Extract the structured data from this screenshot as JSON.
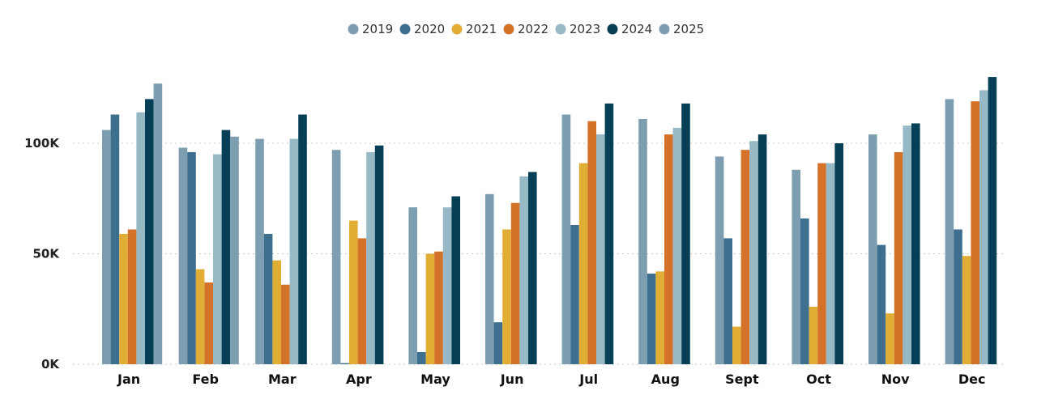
{
  "chart_data": {
    "type": "bar",
    "categories": [
      "Jan",
      "Feb",
      "Mar",
      "Apr",
      "May",
      "Jun",
      "Jul",
      "Aug",
      "Sept",
      "Oct",
      "Nov",
      "Dec"
    ],
    "series": [
      {
        "name": "2019",
        "color": "#7c9eb0",
        "values": [
          106000,
          98000,
          102000,
          97000,
          71000,
          77000,
          113000,
          111000,
          94000,
          88000,
          104000,
          120000
        ]
      },
      {
        "name": "2020",
        "color": "#3e6f8f",
        "values": [
          113000,
          96000,
          59000,
          500,
          5500,
          19000,
          63000,
          41000,
          57000,
          66000,
          54000,
          61000
        ]
      },
      {
        "name": "2021",
        "color": "#e0ad35",
        "values": [
          59000,
          43000,
          47000,
          65000,
          50000,
          61000,
          91000,
          42000,
          17000,
          26000,
          23000,
          49000
        ]
      },
      {
        "name": "2022",
        "color": "#d4722a",
        "values": [
          61000,
          37000,
          36000,
          57000,
          51000,
          73000,
          110000,
          104000,
          97000,
          91000,
          96000,
          119000
        ]
      },
      {
        "name": "2023",
        "color": "#97b9c6",
        "values": [
          114000,
          95000,
          102000,
          96000,
          71000,
          85000,
          104000,
          107000,
          101000,
          91000,
          108000,
          124000
        ]
      },
      {
        "name": "2024",
        "color": "#073f57",
        "values": [
          120000,
          106000,
          113000,
          99000,
          76000,
          87000,
          118000,
          118000,
          104000,
          100000,
          109000,
          130000
        ]
      },
      {
        "name": "2025",
        "color": "#7d9eb0",
        "values": [
          127000,
          103000,
          null,
          null,
          null,
          null,
          null,
          null,
          null,
          null,
          null,
          null
        ]
      }
    ],
    "y_ticks": [
      {
        "value": 0,
        "label": "0K"
      },
      {
        "value": 50000,
        "label": "50K"
      },
      {
        "value": 100000,
        "label": "100K"
      }
    ],
    "ylim": [
      0,
      140000
    ],
    "grid": true,
    "legend_position": "top-center"
  }
}
